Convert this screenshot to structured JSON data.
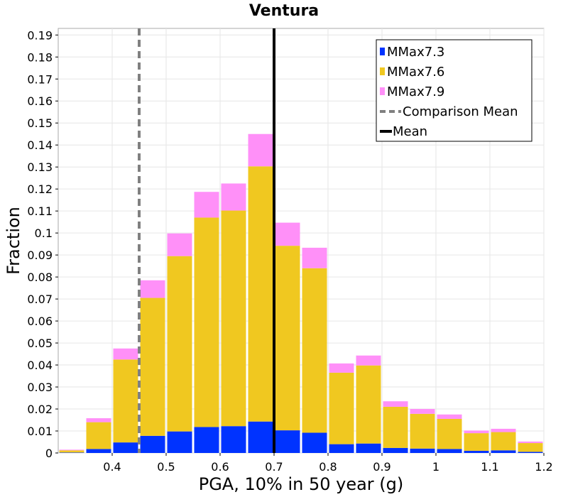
{
  "chart_data": {
    "type": "bar",
    "stacked": true,
    "title": "Ventura",
    "xlabel": "PGA, 10% in 50 year (g)",
    "ylabel": "Fraction",
    "xlim": [
      0.3,
      1.2
    ],
    "ylim": [
      0,
      0.193
    ],
    "grid": true,
    "legend_position": "top-right",
    "bin_width": 0.05,
    "x": [
      0.325,
      0.375,
      0.425,
      0.475,
      0.525,
      0.575,
      0.625,
      0.675,
      0.725,
      0.775,
      0.825,
      0.875,
      0.925,
      0.975,
      1.025,
      1.075,
      1.125,
      1.175
    ],
    "series": [
      {
        "name": "MMax7.3",
        "color": "#0033ff",
        "values": [
          0.0002,
          0.0018,
          0.0048,
          0.0078,
          0.0098,
          0.0118,
          0.0122,
          0.0143,
          0.0103,
          0.0092,
          0.004,
          0.0043,
          0.0023,
          0.002,
          0.0018,
          0.001,
          0.0012,
          0.0005
        ]
      },
      {
        "name": "MMax7.6",
        "color": "#f0c820",
        "values": [
          0.001,
          0.0122,
          0.0377,
          0.0627,
          0.0797,
          0.0952,
          0.098,
          0.116,
          0.0839,
          0.0748,
          0.0325,
          0.0355,
          0.0187,
          0.0158,
          0.0137,
          0.008,
          0.0083,
          0.004
        ]
      },
      {
        "name": "MMax7.9",
        "color": "#ff90f8",
        "values": [
          0.0003,
          0.0018,
          0.005,
          0.008,
          0.0103,
          0.0117,
          0.0123,
          0.0147,
          0.0105,
          0.0093,
          0.0042,
          0.0045,
          0.0025,
          0.0022,
          0.002,
          0.0012,
          0.0015,
          0.0007
        ]
      }
    ],
    "lines": [
      {
        "name": "Comparison Mean",
        "x": 0.45,
        "color": "#808080",
        "style": "dashed"
      },
      {
        "name": "Mean",
        "x": 0.7,
        "color": "#000000",
        "style": "solid"
      }
    ],
    "yticks": [
      0,
      0.01,
      0.02,
      0.03,
      0.04,
      0.05,
      0.06,
      0.07,
      0.08,
      0.09,
      0.1,
      0.11,
      0.12,
      0.13,
      0.14,
      0.15,
      0.16,
      0.17,
      0.18,
      0.19
    ],
    "ytick_labels": [
      "0",
      "0.01",
      "0.02",
      "0.03",
      "0.04",
      "0.05",
      "0.06",
      "0.07",
      "0.08",
      "0.09",
      "0.1",
      "0.11",
      "0.12",
      "0.13",
      "0.14",
      "0.15",
      "0.16",
      "0.17",
      "0.18",
      "0.19"
    ],
    "xticks": [
      0.4,
      0.5,
      0.6,
      0.7,
      0.8,
      0.9,
      1.0,
      1.1,
      1.2
    ],
    "xtick_labels": [
      "0.4",
      "0.5",
      "0.6",
      "0.7",
      "0.8",
      "0.9",
      "1",
      "1.1",
      "1.2"
    ]
  }
}
